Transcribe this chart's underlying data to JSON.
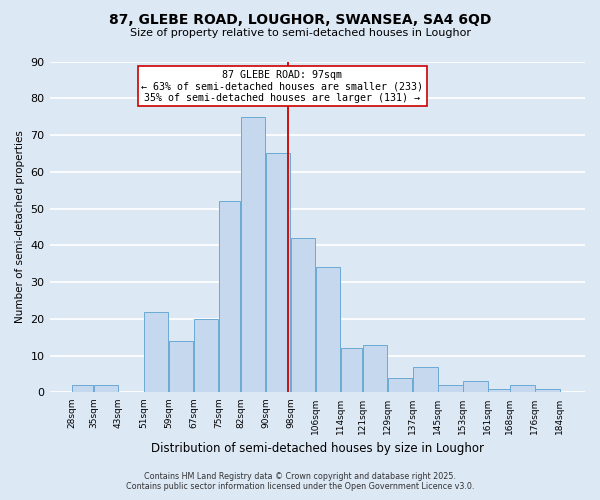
{
  "title1": "87, GLEBE ROAD, LOUGHOR, SWANSEA, SA4 6QD",
  "title2": "Size of property relative to semi-detached houses in Loughor",
  "xlabel": "Distribution of semi-detached houses by size in Loughor",
  "ylabel": "Number of semi-detached properties",
  "bar_left_edges": [
    28,
    35,
    43,
    51,
    59,
    67,
    75,
    82,
    90,
    98,
    106,
    114,
    121,
    129,
    137,
    145,
    153,
    161,
    168,
    176
  ],
  "bar_widths": [
    7,
    8,
    8,
    8,
    8,
    8,
    7,
    8,
    8,
    8,
    8,
    7,
    8,
    8,
    8,
    8,
    8,
    7,
    8,
    8
  ],
  "bar_heights": [
    2,
    2,
    0,
    22,
    14,
    20,
    52,
    75,
    65,
    42,
    34,
    12,
    13,
    4,
    7,
    2,
    3,
    1,
    2,
    1
  ],
  "bar_color": "#c5d8ee",
  "bar_edge_color": "#6aaad4",
  "x_tick_labels": [
    "28sqm",
    "35sqm",
    "43sqm",
    "51sqm",
    "59sqm",
    "67sqm",
    "75sqm",
    "82sqm",
    "90sqm",
    "98sqm",
    "106sqm",
    "114sqm",
    "121sqm",
    "129sqm",
    "137sqm",
    "145sqm",
    "153sqm",
    "161sqm",
    "168sqm",
    "176sqm",
    "184sqm"
  ],
  "x_tick_positions": [
    28,
    35,
    43,
    51,
    59,
    67,
    75,
    82,
    90,
    98,
    106,
    114,
    121,
    129,
    137,
    145,
    153,
    161,
    168,
    176,
    184
  ],
  "ylim": [
    0,
    90
  ],
  "yticks": [
    0,
    10,
    20,
    30,
    40,
    50,
    60,
    70,
    80,
    90
  ],
  "xlim_left": 21,
  "xlim_right": 192,
  "vline_x": 97,
  "vline_color": "#cc0000",
  "annotation_title": "87 GLEBE ROAD: 97sqm",
  "annotation_line1": "← 63% of semi-detached houses are smaller (233)",
  "annotation_line2": "35% of semi-detached houses are larger (131) →",
  "annotation_box_color": "#ffffff",
  "annotation_box_edge": "#cc0000",
  "footnote1": "Contains HM Land Registry data © Crown copyright and database right 2025.",
  "footnote2": "Contains public sector information licensed under the Open Government Licence v3.0.",
  "background_color": "#dde8f5",
  "plot_background": "#dde8f5",
  "grid_color": "#ffffff"
}
